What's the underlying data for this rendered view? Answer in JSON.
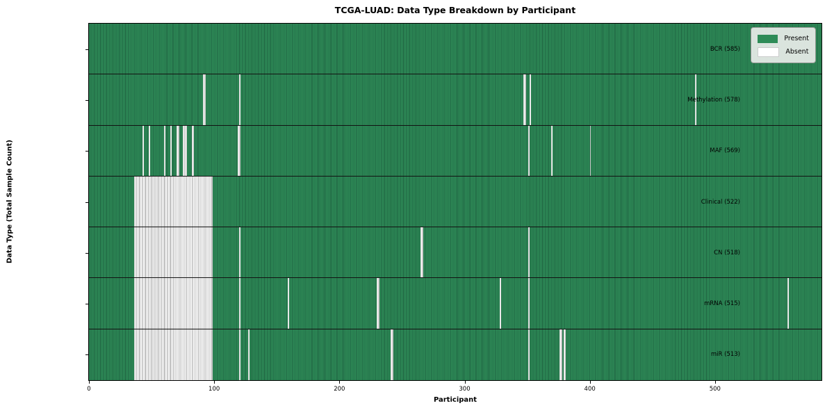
{
  "title": "TCGA-LUAD: Data Type Breakdown by Participant",
  "xlabel": "Participant",
  "ylabel": "Data Type (Total Sample Count)",
  "legend": {
    "present_label": "Present",
    "absent_label": "Absent"
  },
  "colors": {
    "present": "#2e8b57",
    "present_edge": "#1e6140",
    "absent": "#ffffff",
    "absent_edge": "#9a9a9a",
    "row_separator": "#121212",
    "legend_bg": "#e9ede9"
  },
  "chart_data": {
    "type": "heatmap",
    "title": "TCGA-LUAD: Data Type Breakdown by Participant",
    "xlabel": "Participant",
    "ylabel": "Data Type (Total Sample Count)",
    "legend_entries": [
      "Present",
      "Absent"
    ],
    "legend_position": "upper right",
    "total_participants": 585,
    "x_ticks": [
      0,
      100,
      200,
      300,
      400,
      500
    ],
    "xlim": [
      0,
      585
    ],
    "rows": [
      {
        "name": "BCR",
        "label": "BCR (585)",
        "present_count": 585,
        "absent_ranges": []
      },
      {
        "name": "Methylation",
        "label": "Methylation (578)",
        "present_count": 578,
        "absent_ranges": [
          [
            91,
            92
          ],
          [
            120,
            120
          ],
          [
            347,
            348
          ],
          [
            352,
            352
          ],
          [
            484,
            484
          ]
        ]
      },
      {
        "name": "MAF",
        "label": "MAF (569)",
        "present_count": 569,
        "absent_ranges": [
          [
            43,
            43
          ],
          [
            48,
            48
          ],
          [
            60,
            60
          ],
          [
            65,
            65
          ],
          [
            70,
            71
          ],
          [
            75,
            77
          ],
          [
            82,
            83
          ],
          [
            119,
            120
          ],
          [
            351,
            351
          ],
          [
            369,
            369
          ],
          [
            400,
            400
          ]
        ]
      },
      {
        "name": "Clinical",
        "label": "Clinical (522)",
        "present_count": 522,
        "absent_ranges": [
          [
            36,
            98
          ]
        ]
      },
      {
        "name": "CN",
        "label": "CN (518)",
        "present_count": 518,
        "absent_ranges": [
          [
            36,
            98
          ],
          [
            120,
            120
          ],
          [
            265,
            266
          ],
          [
            351,
            351
          ]
        ]
      },
      {
        "name": "mRNA",
        "label": "mRNA (515)",
        "present_count": 515,
        "absent_ranges": [
          [
            36,
            98
          ],
          [
            120,
            120
          ],
          [
            159,
            159
          ],
          [
            230,
            231
          ],
          [
            328,
            328
          ],
          [
            351,
            351
          ],
          [
            558,
            558
          ]
        ]
      },
      {
        "name": "miR",
        "label": "miR (513)",
        "present_count": 513,
        "absent_ranges": [
          [
            36,
            98
          ],
          [
            120,
            120
          ],
          [
            127,
            127
          ],
          [
            241,
            242
          ],
          [
            351,
            351
          ],
          [
            376,
            377
          ],
          [
            379,
            380
          ]
        ]
      }
    ]
  }
}
